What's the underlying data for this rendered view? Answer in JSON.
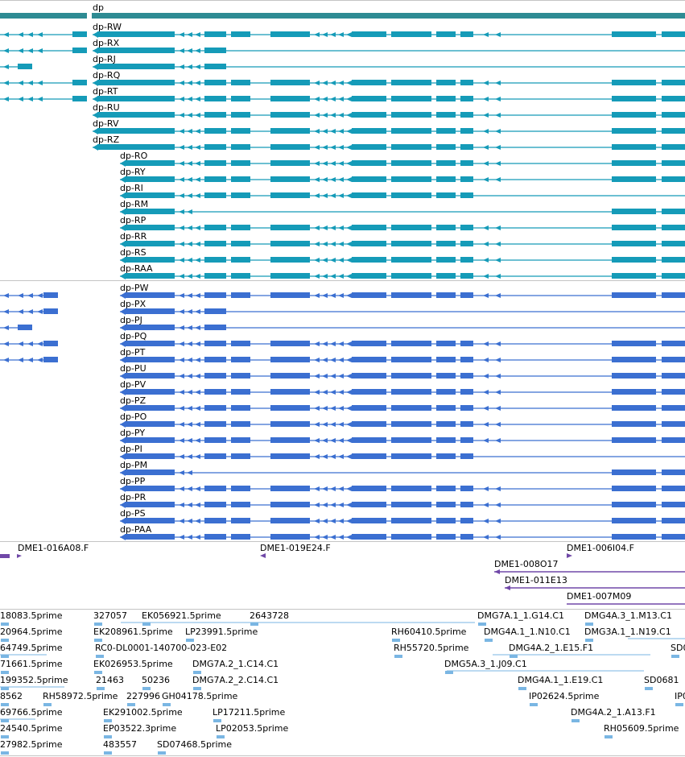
{
  "colors": {
    "gene": "#2e8b93",
    "transcript": "#159bb8",
    "cds": "#3b6fd1",
    "clone": "#7048a8",
    "est": "#7ab6e3",
    "divider": "#c4c4c4",
    "text": "#000000"
  },
  "gene": {
    "name": "dp"
  },
  "transcripts": [
    "dp-RW",
    "dp-RX",
    "dp-RJ",
    "dp-RQ",
    "dp-RT",
    "dp-RU",
    "dp-RV",
    "dp-RZ",
    "dp-RO",
    "dp-RY",
    "dp-RI",
    "dp-RM",
    "dp-RP",
    "dp-RR",
    "dp-RS",
    "dp-RAA"
  ],
  "proteins": [
    "dp-PW",
    "dp-PX",
    "dp-PJ",
    "dp-PQ",
    "dp-PT",
    "dp-PU",
    "dp-PV",
    "dp-PZ",
    "dp-PO",
    "dp-PY",
    "dp-PI",
    "dp-PM",
    "dp-PP",
    "dp-PR",
    "dp-PS",
    "dp-PAA"
  ],
  "clones": [
    "DME1-016A08.F",
    "DME1-019E24.F",
    "DME1-006I04.F",
    "DME1-008O17",
    "DME1-011E13",
    "DME1-007M09"
  ],
  "ests": [
    "18083.5prime",
    "327057",
    "EK056921.5prime",
    "2643728",
    "DMG7A.1_1.G14.C1",
    "DMG4A.3_1.M13.C1",
    "20964.5prime",
    "EK208961.5prime",
    "LP23991.5prime",
    "RH60410.5prime",
    "DMG4A.1_1.N10.C1",
    "DMG3A.1_1.N19.C1",
    "64749.5prime",
    "RC0-DL0001-140700-023-E02",
    "RH55720.5prime",
    "DMG4A.2_1.E15.F1",
    "SD0",
    "71661.5prime",
    "EK026953.5prime",
    "DMG7A.2_1.C14.C1",
    "DMG5A.3_1.J09.C1",
    "199352.5prime",
    "21463",
    "50236",
    "DMG7A.2_2.C14.C1",
    "DMG4A.1_1.E19.C1",
    "SD0681",
    "8562",
    "RH58972.5prime",
    "227996",
    "GH04178.5prime",
    "IP02624.5prime",
    "IP0",
    "69766.5prime",
    "EK291002.5prime",
    "LP17211.5prime",
    "DMG4A.2_1.A13.F1",
    "24540.5prime",
    "EP03522.3prime",
    "LP02053.5prime",
    "RH05609.5prime",
    "27982.5prime",
    "483557",
    "SD07468.5prime"
  ]
}
